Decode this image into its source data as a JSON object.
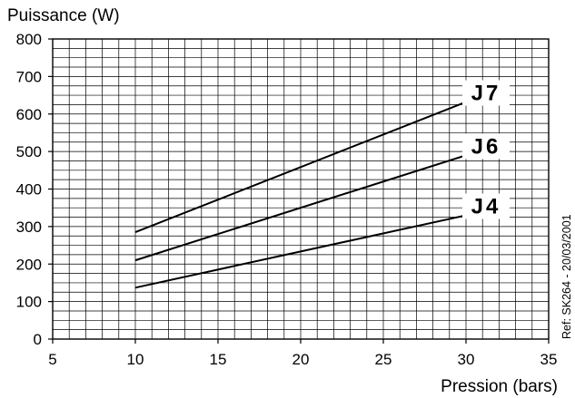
{
  "chart_data": {
    "type": "line",
    "ylabel": "Puissance (W)",
    "xlabel": "Pression (bars)",
    "xlim": [
      5,
      35
    ],
    "ylim": [
      0,
      800
    ],
    "x_ticks": [
      "5",
      "10",
      "15",
      "20",
      "25",
      "30",
      "35"
    ],
    "y_ticks": [
      "0",
      "100",
      "200",
      "300",
      "400",
      "500",
      "600",
      "700",
      "800"
    ],
    "minor_x_step": 1,
    "minor_y_step": 25,
    "grid": true,
    "series": [
      {
        "name": "J7",
        "x": [
          10,
          30
        ],
        "y": [
          285,
          632
        ]
      },
      {
        "name": "J6",
        "x": [
          10,
          30
        ],
        "y": [
          210,
          490
        ]
      },
      {
        "name": "J4",
        "x": [
          10,
          30
        ],
        "y": [
          137,
          330
        ]
      }
    ],
    "reference": "Ref: SK264 - 20/03/2001"
  }
}
